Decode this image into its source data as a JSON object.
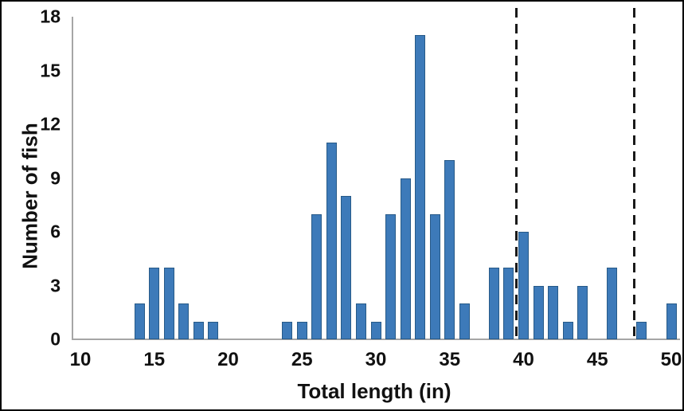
{
  "chart_data": {
    "type": "bar",
    "title": "",
    "xlabel": "Total length (in)",
    "ylabel": "Number of fish",
    "x": [
      14,
      15,
      16,
      17,
      18,
      19,
      24,
      25,
      26,
      27,
      28,
      29,
      30,
      31,
      32,
      33,
      34,
      35,
      36,
      38,
      39,
      40,
      41,
      42,
      43,
      44,
      46,
      48,
      50
    ],
    "values": [
      2,
      4,
      4,
      2,
      1,
      1,
      1,
      1,
      7,
      11,
      8,
      2,
      1,
      7,
      9,
      17,
      7,
      10,
      2,
      4,
      4,
      6,
      3,
      3,
      1,
      3,
      4,
      1,
      2
    ],
    "xlim": [
      10,
      50
    ],
    "ylim": [
      0,
      18
    ],
    "x_ticks": [
      10,
      15,
      20,
      25,
      30,
      35,
      40,
      45,
      50
    ],
    "y_ticks": [
      0,
      3,
      6,
      9,
      12,
      15,
      18
    ],
    "reference_lines_x": [
      39.5,
      47.5
    ],
    "grid": false,
    "legend_position": "none",
    "colors": {
      "bar_fill": "#3d7ab9",
      "bar_border": "#275a88",
      "axis_line": "#a6a6a6",
      "reference_line": "#1a1a1a",
      "text": "#111111",
      "background": "#ffffff",
      "frame_border": "#000000"
    }
  }
}
